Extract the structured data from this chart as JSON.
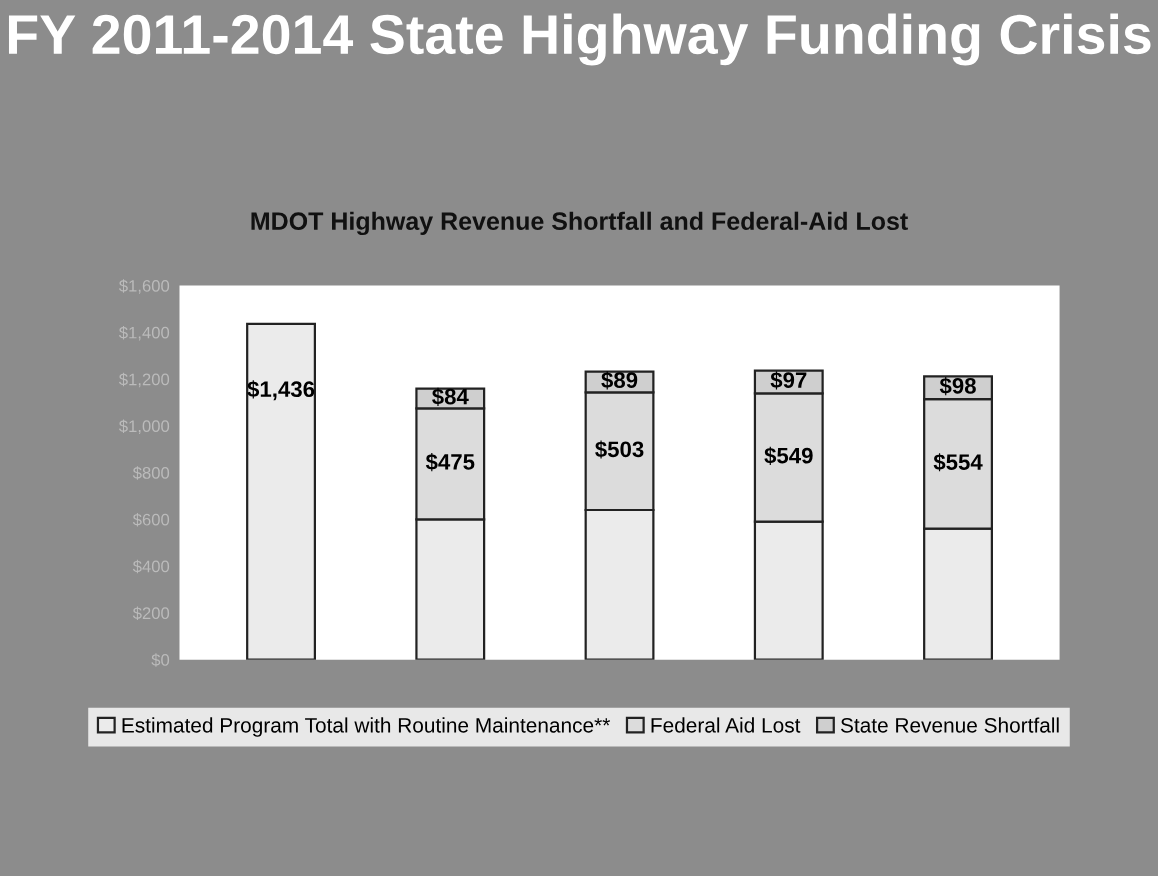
{
  "chart_data": {
    "type": "bar",
    "title": "FY 2011-2014 State Highway Funding Crisis",
    "subtitle": "MDOT Highway Revenue Shortfall and Federal-Aid Lost",
    "categories": [
      null,
      null,
      null,
      null,
      null
    ],
    "stacked": true,
    "series": [
      {
        "name": "Estimated Program Total with Routine Maintenance**",
        "color": "#ebebeb",
        "values": [
          1436,
          600,
          640,
          590,
          560
        ],
        "value_labels": [
          "$1,436",
          null,
          null,
          null,
          null
        ]
      },
      {
        "name": "Federal Aid Lost",
        "color": "#dcdcdc",
        "values": [
          null,
          475,
          503,
          549,
          554
        ],
        "value_labels": [
          null,
          "$475",
          "$503",
          "$549",
          "$554"
        ]
      },
      {
        "name": "State Revenue Shortfall",
        "color": "#cfcfcf",
        "values": [
          null,
          84,
          89,
          97,
          98
        ],
        "value_labels": [
          null,
          "$84",
          "$89",
          "$97",
          "$98"
        ]
      }
    ],
    "ylim": [
      0,
      1600
    ],
    "yticks": [
      {
        "value": 0,
        "label": "$0"
      },
      {
        "value": 200,
        "label": "$200"
      },
      {
        "value": 400,
        "label": "$400"
      },
      {
        "value": 600,
        "label": "$600"
      },
      {
        "value": 800,
        "label": "$800"
      },
      {
        "value": 1000,
        "label": "$1,000"
      },
      {
        "value": 1200,
        "label": "$1,200"
      },
      {
        "value": 1400,
        "label": "$1,400"
      },
      {
        "value": 1600,
        "label": "$1,600"
      }
    ],
    "grid": false,
    "legend": "bottom"
  }
}
